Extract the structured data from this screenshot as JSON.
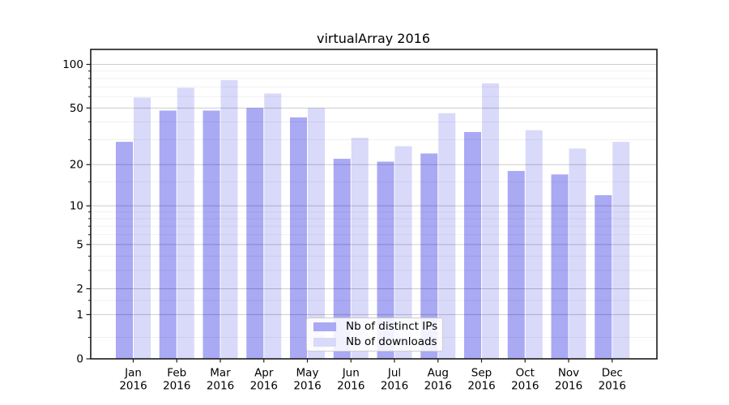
{
  "figure": {
    "title": "virtualArray 2016"
  },
  "colors": {
    "bar_ips": "#a9a9f4",
    "bar_downloads": "#d9d9fa",
    "grid_major": "rgba(0,0,0,0.20)",
    "grid_minor": "rgba(0,0,0,0.06)",
    "spine": "#1a1a1a",
    "text": "#000000",
    "legend_border": "#cccccc"
  },
  "y_axis": {
    "scale": "log10(1+y)",
    "major_ticks": [
      100,
      50,
      20,
      10,
      5,
      2,
      1,
      0
    ],
    "minor_ticks": [
      90,
      80,
      70,
      60,
      40,
      30,
      15,
      9,
      8,
      7,
      6,
      4,
      3,
      1.5,
      0.4
    ]
  },
  "x_axis": {
    "months": [
      "Jan",
      "Feb",
      "Mar",
      "Apr",
      "May",
      "Jun",
      "Jul",
      "Aug",
      "Sep",
      "Oct",
      "Nov",
      "Dec"
    ],
    "year": "2016"
  },
  "legend": {
    "items": [
      {
        "label": "Nb of distinct IPs",
        "series": "ips"
      },
      {
        "label": "Nb of downloads",
        "series": "downloads"
      }
    ]
  },
  "chart_data": {
    "type": "bar",
    "title": "virtualArray 2016",
    "categories": [
      "Jan 2016",
      "Feb 2016",
      "Mar 2016",
      "Apr 2016",
      "May 2016",
      "Jun 2016",
      "Jul 2016",
      "Aug 2016",
      "Sep 2016",
      "Oct 2016",
      "Nov 2016",
      "Dec 2016"
    ],
    "series": [
      {
        "name": "Nb of distinct IPs",
        "values": [
          29,
          48,
          48,
          50,
          43,
          22,
          21,
          24,
          34,
          18,
          17,
          12
        ]
      },
      {
        "name": "Nb of downloads",
        "values": [
          59,
          69,
          78,
          63,
          50,
          31,
          27,
          46,
          74,
          35,
          26,
          29
        ]
      }
    ],
    "xlabel": "",
    "ylabel": "",
    "yscale": "log1p",
    "y_tick_labels": [
      0,
      1,
      2,
      5,
      10,
      20,
      50,
      100
    ],
    "ylim_value_range": [
      0,
      127
    ],
    "grid": true,
    "grid_above_bars": true,
    "legend_position": "lower center"
  }
}
